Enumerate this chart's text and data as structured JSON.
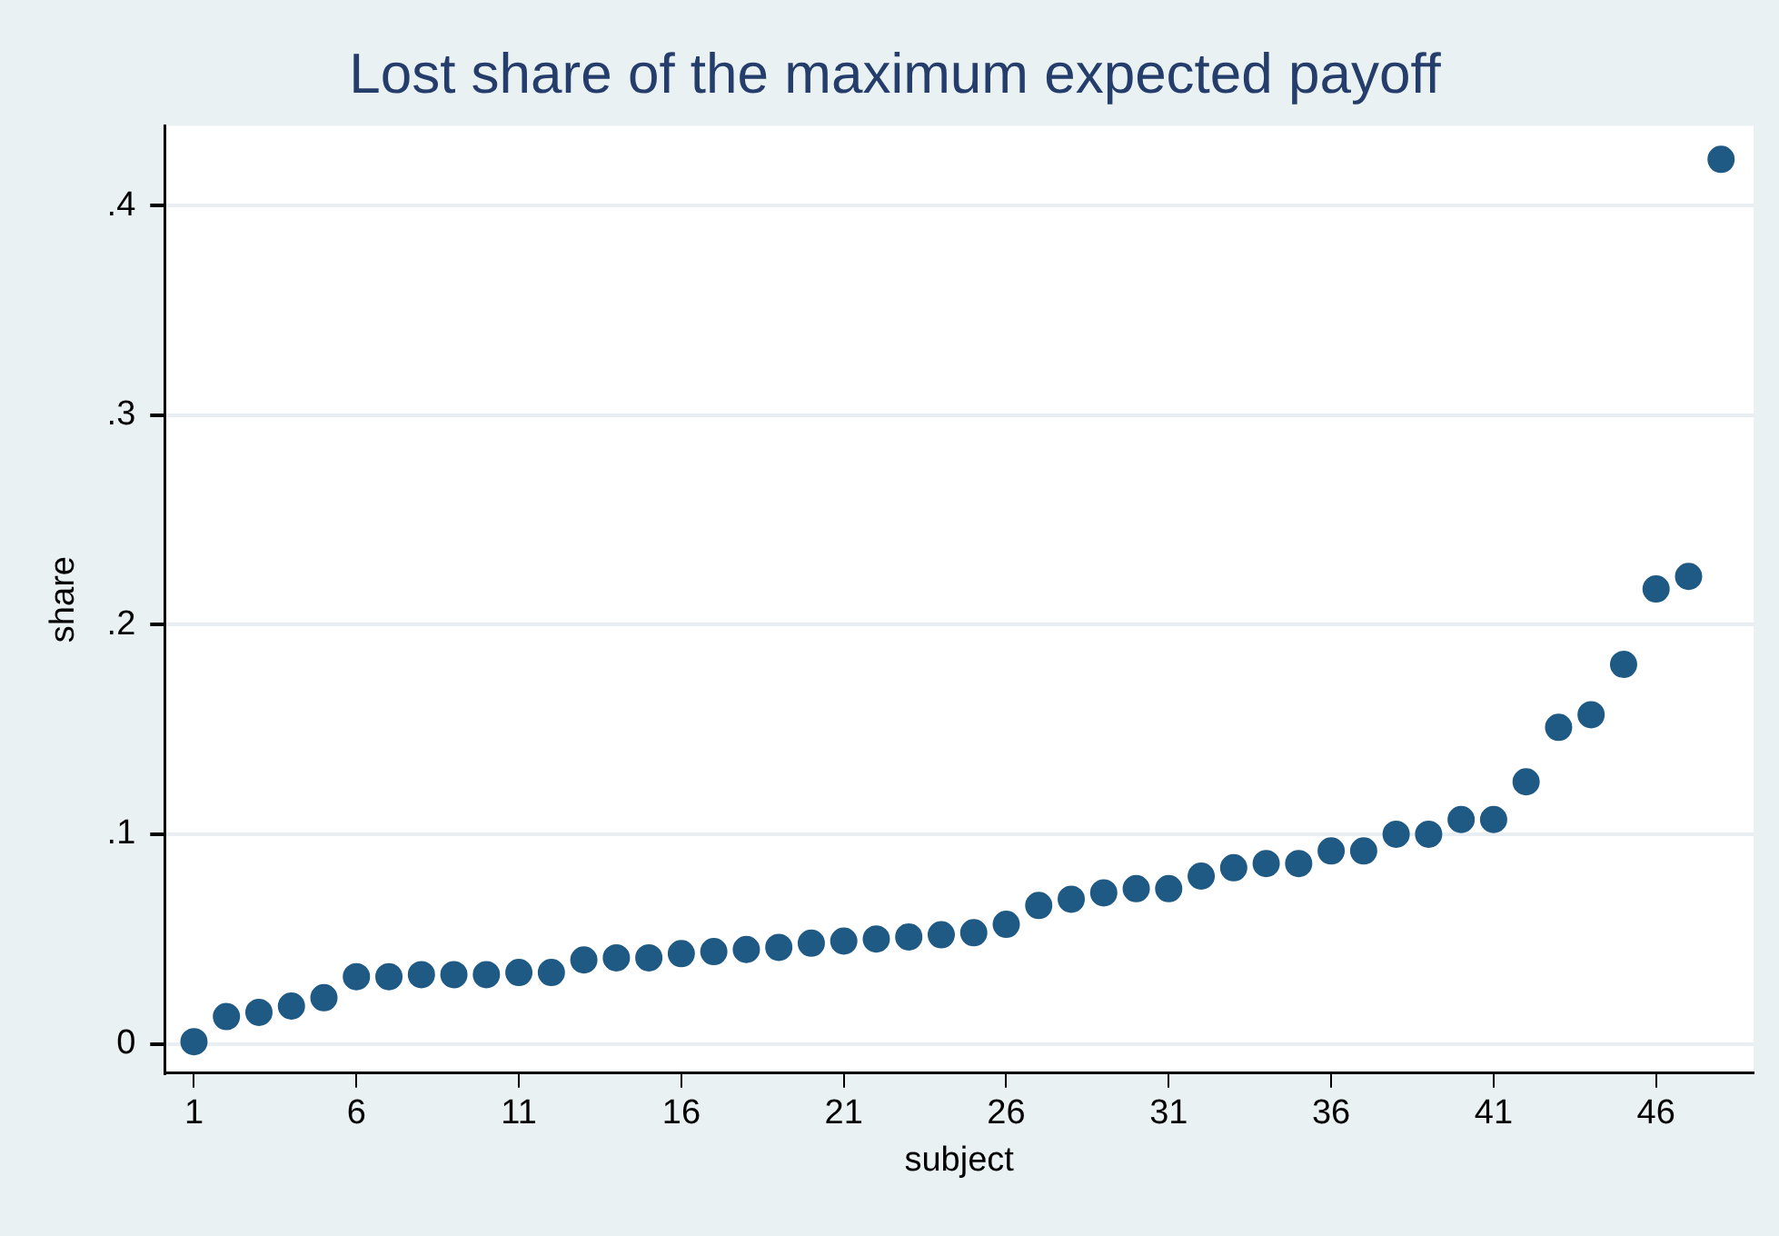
{
  "chart_data": {
    "type": "scatter",
    "title": "Lost share of the maximum expected payoff",
    "xlabel": "subject",
    "ylabel": "share",
    "x": [
      1,
      2,
      3,
      4,
      5,
      6,
      7,
      8,
      9,
      10,
      11,
      12,
      13,
      14,
      15,
      16,
      17,
      18,
      19,
      20,
      21,
      22,
      23,
      24,
      25,
      26,
      27,
      28,
      29,
      30,
      31,
      32,
      33,
      34,
      35,
      36,
      37,
      38,
      39,
      40,
      41,
      42,
      43,
      44,
      45,
      46,
      47,
      48
    ],
    "series": [
      {
        "color": "#1f5a85",
        "values": [
          0.001,
          0.013,
          0.015,
          0.018,
          0.022,
          0.032,
          0.032,
          0.033,
          0.033,
          0.033,
          0.034,
          0.034,
          0.04,
          0.041,
          0.041,
          0.043,
          0.044,
          0.045,
          0.046,
          0.048,
          0.049,
          0.05,
          0.051,
          0.052,
          0.053,
          0.057,
          0.066,
          0.069,
          0.072,
          0.074,
          0.074,
          0.08,
          0.084,
          0.086,
          0.086,
          0.092,
          0.092,
          0.1,
          0.1,
          0.107,
          0.107,
          0.125,
          0.151,
          0.157,
          0.181,
          0.217,
          0.223,
          0.422
        ]
      }
    ],
    "xlim": [
      0.1,
      49
    ],
    "xticks": [
      1,
      6,
      11,
      16,
      21,
      26,
      31,
      36,
      41,
      46
    ],
    "ylim": [
      -0.014,
      0.438
    ],
    "yticks": [
      {
        "value": 0,
        "label": "0"
      },
      {
        "value": 0.1,
        "label": ".1"
      },
      {
        "value": 0.2,
        "label": ".2"
      },
      {
        "value": 0.3,
        "label": ".3"
      },
      {
        "value": 0.4,
        "label": ".4"
      }
    ],
    "grid": "y",
    "marker": "circle",
    "legend": false
  }
}
